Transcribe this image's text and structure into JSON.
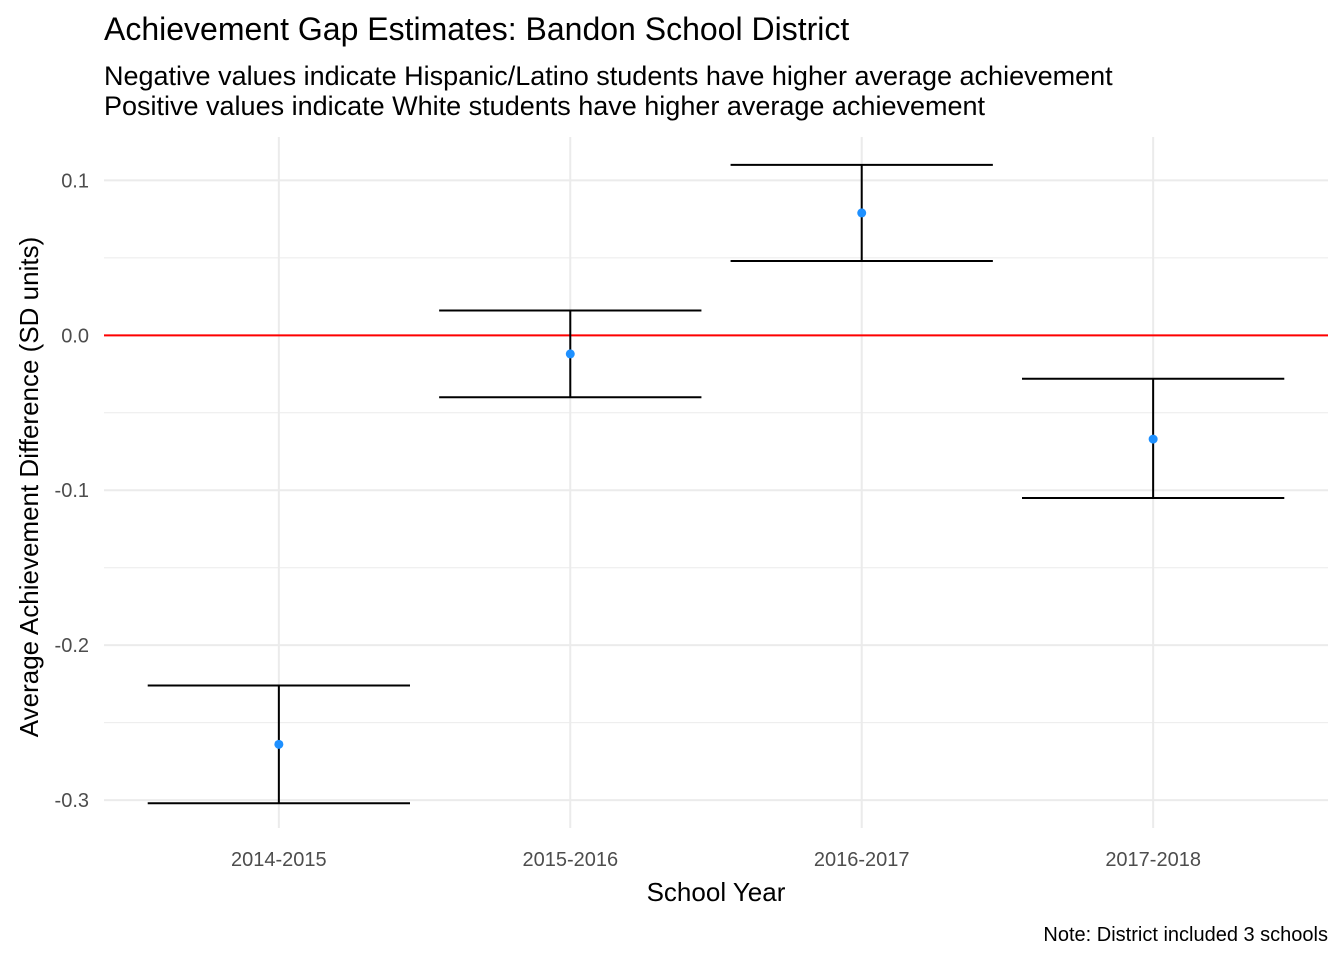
{
  "chart_data": {
    "type": "scatter",
    "title": "Achievement Gap Estimates: Bandon School District",
    "subtitle": [
      "Negative values indicate Hispanic/Latino students have higher average achievement",
      "Positive values indicate White students have higher average achievement"
    ],
    "xlabel": "School Year",
    "ylabel": "Average Achievement Difference (SD units)",
    "caption": "Note: District included 3 schools",
    "categories": [
      "2014-2015",
      "2015-2016",
      "2016-2017",
      "2017-2018"
    ],
    "estimates": [
      -0.264,
      -0.012,
      0.079,
      -0.067
    ],
    "lower": [
      -0.302,
      -0.04,
      0.048,
      -0.105
    ],
    "upper": [
      -0.226,
      0.016,
      0.11,
      -0.028
    ],
    "yticks": [
      0.1,
      0.0,
      -0.1,
      -0.2,
      -0.3
    ],
    "ytick_labels": [
      "0.1",
      "0.0",
      "-0.1",
      "-0.2",
      "-0.3"
    ],
    "ylim": [
      -0.318,
      0.128
    ],
    "reference_line": 0,
    "grid": true,
    "colors": {
      "point": "#1e90ff",
      "reference_line": "#ff0000",
      "errorbar": "#000000",
      "grid": "#ebebeb"
    }
  }
}
